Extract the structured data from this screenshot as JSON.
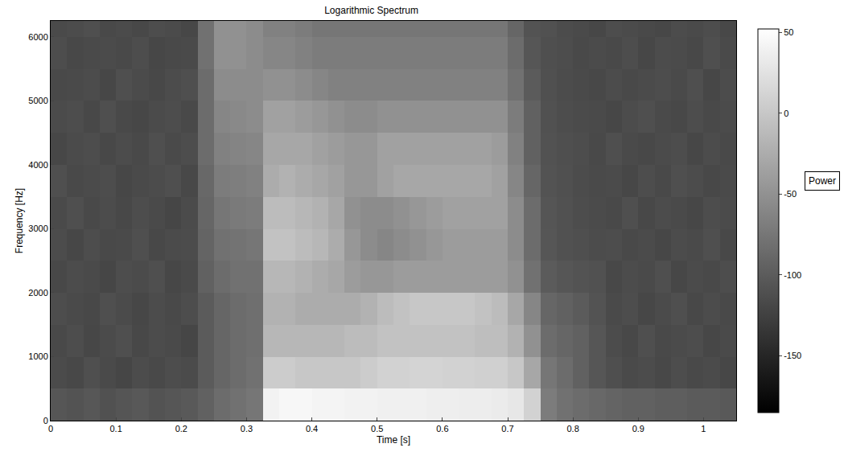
{
  "chart_data": {
    "type": "heatmap",
    "title": "Logarithmic Spectrum",
    "x_label": "Time [s]",
    "y_label": "Frequency [Hz]",
    "x": [
      0.0125,
      0.0375,
      0.0625,
      0.0875,
      0.1125,
      0.1375,
      0.1625,
      0.1875,
      0.2125,
      0.2375,
      0.2625,
      0.2875,
      0.3125,
      0.3375,
      0.3625,
      0.3875,
      0.4125,
      0.4375,
      0.4625,
      0.4875,
      0.5125,
      0.5375,
      0.5625,
      0.5875,
      0.6125,
      0.6375,
      0.6625,
      0.6875,
      0.7125,
      0.7375,
      0.7625,
      0.7875,
      0.8125,
      0.8375,
      0.8625,
      0.8875,
      0.9125,
      0.9375,
      0.9625,
      0.9875,
      1.0125,
      1.0375
    ],
    "y": [
      250,
      750,
      1250,
      1750,
      2250,
      2750,
      3250,
      3750,
      4250,
      4750,
      5250,
      5750,
      6250
    ],
    "z": [
      [
        -105,
        -108,
        -104,
        -110,
        -106,
        -103,
        -108,
        -105,
        -102,
        -95,
        -85,
        -80,
        -75,
        40,
        45,
        45,
        42,
        42,
        40,
        40,
        38,
        38,
        38,
        36,
        36,
        35,
        35,
        33,
        30,
        10,
        -70,
        -80,
        -85,
        -88,
        -92,
        -95,
        -95,
        -98,
        -98,
        -100,
        -100,
        -102
      ],
      [
        -115,
        -118,
        -112,
        -116,
        -120,
        -114,
        -117,
        -113,
        -115,
        -100,
        -90,
        -85,
        -80,
        5,
        5,
        0,
        0,
        0,
        0,
        5,
        10,
        10,
        12,
        12,
        10,
        10,
        8,
        8,
        0,
        -30,
        -75,
        -85,
        -95,
        -105,
        -112,
        -116,
        -114,
        -118,
        -113,
        -117,
        -115,
        -119
      ],
      [
        -117,
        -113,
        -119,
        -115,
        -112,
        -118,
        -114,
        -116,
        -120,
        -100,
        -90,
        -85,
        -82,
        -15,
        -15,
        -15,
        -15,
        -15,
        -10,
        -10,
        -5,
        -5,
        -5,
        -5,
        -5,
        -5,
        -8,
        -8,
        -20,
        -50,
        -85,
        -90,
        -95,
        -105,
        -114,
        -118,
        -112,
        -117,
        -115,
        -113,
        -119,
        -116
      ],
      [
        -113,
        -116,
        -118,
        -112,
        -115,
        -119,
        -114,
        -117,
        -113,
        -100,
        -90,
        -85,
        -82,
        -20,
        -20,
        -25,
        -25,
        -25,
        -25,
        -20,
        -10,
        -5,
        0,
        0,
        0,
        0,
        -5,
        -10,
        -30,
        -60,
        -90,
        -95,
        -100,
        -108,
        -116,
        -113,
        -119,
        -115,
        -112,
        -118,
        -114,
        -117
      ],
      [
        -118,
        -114,
        -116,
        -120,
        -113,
        -115,
        -112,
        -119,
        -116,
        -95,
        -85,
        -80,
        -80,
        -15,
        -15,
        -20,
        -25,
        -30,
        -40,
        -45,
        -45,
        -40,
        -40,
        -40,
        -40,
        -40,
        -40,
        -40,
        -50,
        -80,
        -100,
        -105,
        -108,
        -110,
        -118,
        -114,
        -116,
        -112,
        -119,
        -115,
        -117,
        -113
      ],
      [
        -114,
        -119,
        -113,
        -117,
        -116,
        -112,
        -118,
        -115,
        -114,
        -92,
        -80,
        -78,
        -75,
        -5,
        -5,
        -10,
        -15,
        -25,
        -45,
        -55,
        -60,
        -55,
        -50,
        -45,
        -40,
        -40,
        -40,
        -40,
        -55,
        -85,
        -105,
        -110,
        -112,
        -114,
        -113,
        -117,
        -115,
        -119,
        -114,
        -116,
        -112,
        -118
      ],
      [
        -116,
        -112,
        -117,
        -114,
        -118,
        -113,
        -116,
        -120,
        -115,
        -90,
        -75,
        -72,
        -70,
        -10,
        -10,
        -15,
        -20,
        -30,
        -50,
        -55,
        -55,
        -50,
        -45,
        -40,
        -35,
        -35,
        -35,
        -35,
        -55,
        -85,
        -106,
        -110,
        -113,
        -115,
        -117,
        -112,
        -118,
        -114,
        -116,
        -119,
        -113,
        -115
      ],
      [
        -112,
        -117,
        -115,
        -113,
        -119,
        -116,
        -114,
        -112,
        -118,
        -88,
        -70,
        -68,
        -65,
        -25,
        -20,
        -25,
        -30,
        -35,
        -45,
        -45,
        -35,
        -30,
        -30,
        -30,
        -30,
        -30,
        -30,
        -35,
        -60,
        -90,
        -108,
        -111,
        -114,
        -116,
        -115,
        -119,
        -113,
        -117,
        -112,
        -114,
        -118,
        -116
      ],
      [
        -119,
        -115,
        -113,
        -118,
        -114,
        -117,
        -112,
        -116,
        -113,
        -85,
        -65,
        -62,
        -60,
        -30,
        -30,
        -30,
        -35,
        -40,
        -45,
        -45,
        -35,
        -35,
        -35,
        -35,
        -35,
        -35,
        -35,
        -40,
        -65,
        -95,
        -109,
        -112,
        -113,
        -117,
        -112,
        -116,
        -118,
        -115,
        -113,
        -119,
        -114,
        -117
      ],
      [
        -115,
        -113,
        -118,
        -112,
        -117,
        -119,
        -115,
        -113,
        -117,
        -85,
        -60,
        -58,
        -55,
        -35,
        -35,
        -40,
        -45,
        -50,
        -55,
        -55,
        -50,
        -50,
        -50,
        -50,
        -50,
        -50,
        -50,
        -50,
        -70,
        -95,
        -110,
        -113,
        -115,
        -116,
        -119,
        -114,
        -112,
        -116,
        -118,
        -113,
        -117,
        -115
      ],
      [
        -117,
        -116,
        -114,
        -119,
        -112,
        -115,
        -118,
        -114,
        -112,
        -85,
        -55,
        -55,
        -55,
        -50,
        -50,
        -55,
        -60,
        -65,
        -65,
        -65,
        -65,
        -65,
        -65,
        -65,
        -65,
        -65,
        -65,
        -65,
        -80,
        -100,
        -111,
        -114,
        -116,
        -118,
        -114,
        -117,
        -115,
        -113,
        -116,
        -112,
        -119,
        -114
      ],
      [
        -113,
        -118,
        -116,
        -115,
        -117,
        -113,
        -119,
        -117,
        -116,
        -80,
        -50,
        -50,
        -55,
        -60,
        -60,
        -65,
        -70,
        -70,
        -70,
        -70,
        -70,
        -70,
        -70,
        -70,
        -70,
        -70,
        -70,
        -70,
        -85,
        -105,
        -112,
        -113,
        -117,
        -115,
        -117,
        -113,
        -119,
        -114,
        -115,
        -118,
        -112,
        -116
      ],
      [
        -116,
        -114,
        -112,
        -117,
        -115,
        -118,
        -113,
        -115,
        -119,
        -80,
        -50,
        -50,
        -55,
        -65,
        -65,
        -70,
        -75,
        -75,
        -75,
        -75,
        -75,
        -75,
        -75,
        -75,
        -75,
        -75,
        -75,
        -75,
        -90,
        -108,
        -110,
        -114,
        -116,
        -119,
        -113,
        -115,
        -117,
        -119,
        -114,
        -116,
        -113,
        -118
      ]
    ],
    "xlim": [
      0,
      1.05
    ],
    "ylim": [
      0,
      6250
    ],
    "xticks": [
      0,
      0.1,
      0.2,
      0.3,
      0.4,
      0.5,
      0.6,
      0.7,
      0.8,
      0.9,
      1
    ],
    "yticks": [
      0,
      1000,
      2000,
      3000,
      4000,
      5000,
      6000
    ],
    "colorbar": {
      "title": "Power",
      "range": [
        -185,
        52
      ],
      "ticks": [
        50,
        0,
        -50,
        -100,
        -150
      ]
    }
  }
}
